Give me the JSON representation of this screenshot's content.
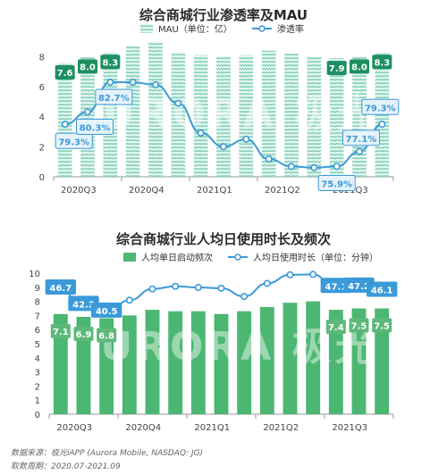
{
  "chart_data": [
    {
      "type": "bar+line",
      "title": "综合商城行业渗透率及MAU",
      "x": [
        "2020Q3a",
        "2020Q3b",
        "2020Q3c",
        "2020Q4a",
        "2020Q4b",
        "2020Q4c",
        "2021Q1a",
        "2021Q1b",
        "2021Q1c",
        "2021Q2a",
        "2021Q2b",
        "2021Q2c",
        "2021Q3a",
        "2021Q3b",
        "2021Q3c"
      ],
      "xtick_labels": [
        {
          "index": 0,
          "label": "2020Q3"
        },
        {
          "index": 3,
          "label": "2020Q4"
        },
        {
          "index": 6,
          "label": "2021Q1"
        },
        {
          "index": 9,
          "label": "2021Q2"
        },
        {
          "index": 12,
          "label": "2021Q3"
        }
      ],
      "bars": {
        "name": "MAU（单位：亿）",
        "values": [
          7.6,
          8.0,
          8.3,
          8.7,
          9.0,
          8.3,
          8.1,
          8.0,
          8.1,
          8.4,
          8.2,
          8.0,
          7.9,
          8.0,
          8.3
        ],
        "labels": [
          "7.6",
          "8.0",
          "8.3",
          "",
          "",
          "",
          "",
          "",
          "",
          "",
          "",
          "",
          "7.9",
          "8.0",
          "8.3"
        ]
      },
      "line": {
        "name": "渗透率",
        "values": [
          79.3,
          80.3,
          82.7,
          82.7,
          82.5,
          81.0,
          78.6,
          77.5,
          78.1,
          76.5,
          75.9,
          75.8,
          75.9,
          77.1,
          79.3
        ],
        "labels": [
          "79.3%",
          "80.3%",
          "82.7%",
          "",
          "",
          "",
          "",
          "",
          "",
          "",
          "",
          "",
          "75.9%",
          "77.1%",
          "79.3%"
        ]
      },
      "yticks": [
        "0",
        "2",
        "4",
        "6",
        "8"
      ],
      "ylim": [
        0,
        8.8
      ],
      "colors": {
        "bar": "#6cc8ae",
        "bar_label": "#1d8f63",
        "line": "#3a9ad9",
        "line_label": "#3a9ad9"
      }
    },
    {
      "type": "bar+line",
      "title": "综合商城行业人均日使用时长及频次",
      "x": [
        "2020Q3a",
        "2020Q3b",
        "2020Q3c",
        "2020Q4a",
        "2020Q4b",
        "2020Q4c",
        "2021Q1a",
        "2021Q1b",
        "2021Q1c",
        "2021Q2a",
        "2021Q2b",
        "2021Q2c",
        "2021Q3a",
        "2021Q3b",
        "2021Q3c"
      ],
      "xtick_labels": [
        {
          "index": 0,
          "label": "2020Q3"
        },
        {
          "index": 3,
          "label": "2020Q4"
        },
        {
          "index": 6,
          "label": "2021Q1"
        },
        {
          "index": 9,
          "label": "2021Q2"
        },
        {
          "index": 12,
          "label": "2021Q3"
        }
      ],
      "bars": {
        "name": "人均单日启动频次",
        "values": [
          7.1,
          6.9,
          6.8,
          7.0,
          7.4,
          7.3,
          7.3,
          7.1,
          7.3,
          7.6,
          7.9,
          8.0,
          7.4,
          7.5,
          7.5
        ],
        "labels": [
          "7.1",
          "6.9",
          "6.8",
          "",
          "",
          "",
          "",
          "",
          "",
          "",
          "",
          "",
          "7.4",
          "7.5",
          "7.5"
        ]
      },
      "line": {
        "name": "人均日使用时长（单位：分钟）",
        "values": [
          46.7,
          42.3,
          40.5,
          44.0,
          47.0,
          47.7,
          47.4,
          47.2,
          45.0,
          48.5,
          50.8,
          50.9,
          47.1,
          47.2,
          46.1
        ],
        "labels": [
          "46.7",
          "42.3",
          "40.5",
          "",
          "",
          "",
          "",
          "",
          "",
          "",
          "",
          "",
          "47.1",
          "47.2",
          "46.1"
        ]
      },
      "yticks": [
        "0",
        "1",
        "2",
        "3",
        "4",
        "5",
        "6",
        "7",
        "8",
        "9",
        "10"
      ],
      "ylim": [
        0,
        10
      ],
      "colors": {
        "bar": "#4cb772",
        "bar_label": "#ffffff",
        "label_box": "#5cb97a",
        "line": "#3a9ad9",
        "line_label_box": "#3a9ad9"
      }
    }
  ],
  "footer": {
    "source": "数据来源：极光iAPP (Aurora Mobile, NASDAQ: JG)",
    "period": "取数周期：2020.07-2021.09"
  },
  "watermark": "URORA 极光"
}
